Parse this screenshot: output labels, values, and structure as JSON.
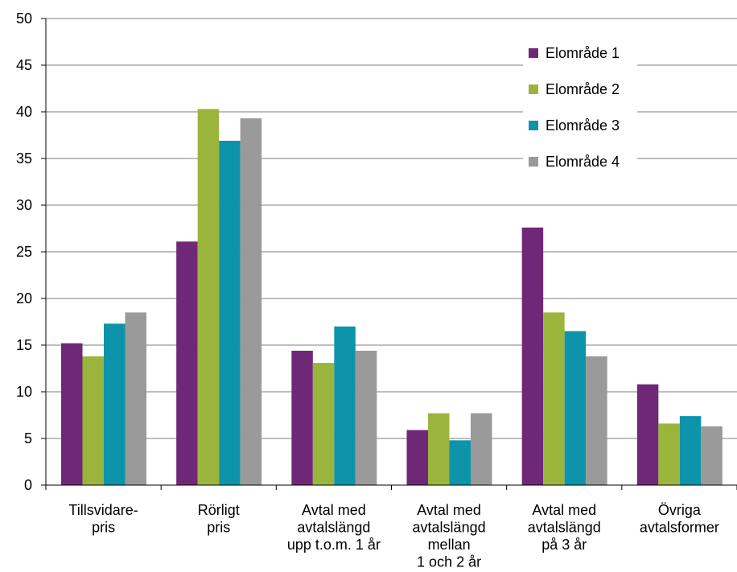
{
  "chart_data": {
    "type": "bar",
    "categories": [
      [
        "Tillsvidare-",
        "pris"
      ],
      [
        "Rörligt",
        "pris"
      ],
      [
        "Avtal med",
        "avtalslängd",
        "upp t.o.m. 1 år"
      ],
      [
        "Avtal med",
        "avtalslängd",
        "mellan",
        "1 och 2 år"
      ],
      [
        "Avtal med",
        "avtalslängd",
        "på 3 år"
      ],
      [
        "Övriga",
        "avtalsformer"
      ]
    ],
    "series": [
      {
        "name": "Elområde 1",
        "color": "#6f2877",
        "values": [
          15.2,
          26.1,
          14.4,
          5.9,
          27.6,
          10.8
        ]
      },
      {
        "name": "Elområde 2",
        "color": "#9bb53c",
        "values": [
          13.8,
          40.3,
          13.1,
          7.7,
          18.5,
          6.6
        ]
      },
      {
        "name": "Elområde 3",
        "color": "#0e94aa",
        "values": [
          17.3,
          36.9,
          17.0,
          4.8,
          16.5,
          7.4
        ]
      },
      {
        "name": "Elområde 4",
        "color": "#9a9a9a",
        "values": [
          18.5,
          39.3,
          14.4,
          7.7,
          13.8,
          6.3
        ]
      }
    ],
    "yticks": [
      0,
      5,
      10,
      15,
      20,
      25,
      30,
      35,
      40,
      45,
      50
    ],
    "ylim": [
      0,
      50
    ],
    "grid": true,
    "legend": "top-right",
    "title": "",
    "xlabel": "",
    "ylabel": ""
  }
}
